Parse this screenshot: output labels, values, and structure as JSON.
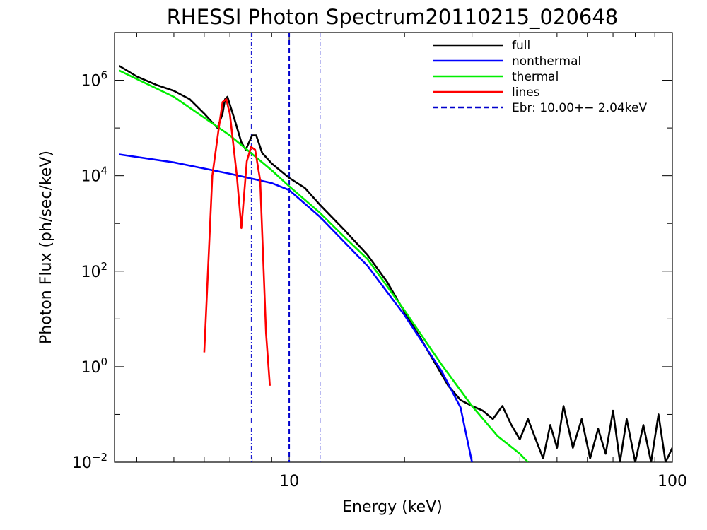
{
  "chart_data": {
    "type": "line",
    "title": "RHESSI Photon Spectrum20110215_020648",
    "xlabel": "Energy (keV)",
    "ylabel": "Photon Flux (ph/sec/keV)",
    "xscale": "log",
    "yscale": "log",
    "xlim": [
      3.5,
      100
    ],
    "ylim": [
      0.01,
      10000000.0
    ],
    "x_ticks": [
      {
        "value": 10,
        "label": "10"
      },
      {
        "value": 100,
        "label": "100"
      }
    ],
    "y_ticks": [
      {
        "value": 0.01,
        "base": "10",
        "exp": "−2"
      },
      {
        "value": 1,
        "base": "10",
        "exp": "0"
      },
      {
        "value": 100,
        "base": "10",
        "exp": "2"
      },
      {
        "value": 10000,
        "base": "10",
        "exp": "4"
      },
      {
        "value": 1000000,
        "base": "10",
        "exp": "6"
      }
    ],
    "legend_position": "top-right",
    "series": [
      {
        "name": "full",
        "color": "#000000",
        "x": [
          3.6,
          4.0,
          4.5,
          5.0,
          5.5,
          6.0,
          6.3,
          6.5,
          6.7,
          6.8,
          6.9,
          7.2,
          7.5,
          7.7,
          8.0,
          8.2,
          8.5,
          9.0,
          10.0,
          11.0,
          12.0,
          14.0,
          16.0,
          18.0,
          20.0,
          22.0,
          24.0,
          26.0,
          28.0,
          30.0,
          32.0,
          34.0,
          36.0,
          38.0,
          40.0,
          42.0,
          44.0,
          46.0,
          48.0,
          50.0,
          52.0,
          55.0,
          58.0,
          61.0,
          64.0,
          67.0,
          70.0,
          73.0,
          76.0,
          80.0,
          84.0,
          88.0,
          92.0,
          96.0,
          100.0
        ],
        "y": [
          2000000,
          1200000,
          800000,
          600000,
          400000,
          200000,
          130000,
          100000,
          200000,
          400000,
          450000,
          150000,
          50000,
          35000,
          70000,
          70000,
          30000,
          18000,
          9000,
          5500,
          2500,
          700,
          220,
          60,
          14,
          4,
          1.2,
          0.4,
          0.2,
          0.15,
          0.12,
          0.08,
          0.15,
          0.06,
          0.03,
          0.08,
          0.03,
          0.012,
          0.06,
          0.02,
          0.15,
          0.02,
          0.08,
          0.012,
          0.05,
          0.015,
          0.12,
          0.01,
          0.08,
          0.01,
          0.06,
          0.01,
          0.1,
          0.01,
          0.02
        ]
      },
      {
        "name": "nonthermal",
        "color": "#0000ff",
        "x": [
          3.6,
          5.0,
          7.0,
          9.0,
          10.0,
          12.0,
          16.0,
          20.0,
          25.0,
          28.0,
          30.0
        ],
        "y": [
          28000,
          19000,
          11000,
          7000,
          5000,
          1400,
          130,
          12,
          0.8,
          0.14,
          0.01
        ]
      },
      {
        "name": "thermal",
        "color": "#00ee00",
        "x": [
          3.6,
          5.0,
          7.0,
          9.0,
          10.0,
          12.0,
          14.0,
          16.0,
          20.0,
          25.0,
          30.0,
          35.0,
          40.0,
          42.0
        ],
        "y": [
          1600000,
          450000,
          70000,
          13000,
          6000,
          1700,
          500,
          180,
          15,
          1.1,
          0.15,
          0.035,
          0.015,
          0.01
        ]
      },
      {
        "name": "lines",
        "color": "#ff0000",
        "x": [
          6.0,
          6.3,
          6.55,
          6.7,
          6.85,
          7.0,
          7.3,
          7.5,
          7.75,
          7.95,
          8.15,
          8.4,
          8.7,
          8.9
        ],
        "y": [
          2,
          10000,
          100000,
          350000,
          400000,
          200000,
          10000,
          800,
          20000,
          40000,
          35000,
          8000,
          5,
          0.4
        ]
      }
    ],
    "break_energy": {
      "legend_label": "Ebr: 10.00+− 2.04keV",
      "value": 10.0,
      "color": "#0000cc",
      "lower": 7.96,
      "upper": 12.04
    },
    "legend": [
      {
        "label": "full",
        "color": "#000000",
        "style": "solid"
      },
      {
        "label": "nonthermal",
        "color": "#0000ff",
        "style": "solid"
      },
      {
        "label": "thermal",
        "color": "#00ee00",
        "style": "solid"
      },
      {
        "label": "lines",
        "color": "#ff0000",
        "style": "solid"
      },
      {
        "label": "Ebr: 10.00+− 2.04keV",
        "color": "#0000cc",
        "style": "dashed"
      }
    ]
  }
}
